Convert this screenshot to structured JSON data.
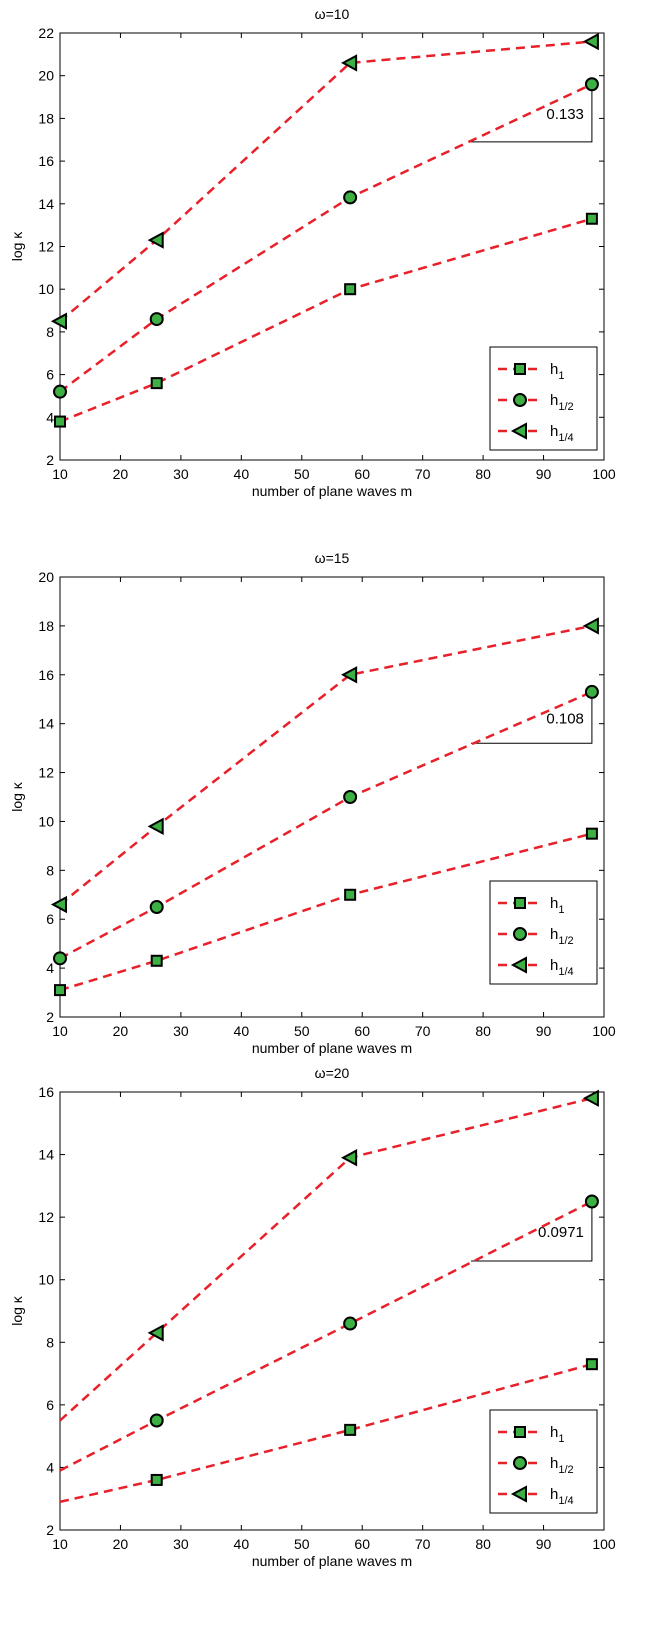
{
  "chart_data": [
    {
      "type": "line",
      "title": "ω=10",
      "xlabel": "number of plane waves m",
      "ylabel": "log κ",
      "xlim": [
        10,
        100
      ],
      "ylim": [
        2,
        22
      ],
      "xticks": [
        10,
        20,
        30,
        40,
        50,
        60,
        70,
        80,
        90,
        100
      ],
      "yticks": [
        2,
        4,
        6,
        8,
        10,
        12,
        14,
        16,
        18,
        20,
        22
      ],
      "grid": false,
      "legend_position": "bottom-right",
      "line_color": "#e8202a",
      "marker_fill": "#3cb043",
      "series": [
        {
          "name": "h",
          "sub": "1",
          "marker": "square",
          "x": [
            10,
            26,
            58,
            98
          ],
          "y": [
            3.8,
            5.6,
            10.0,
            13.3
          ]
        },
        {
          "name": "h",
          "sub": "1/2",
          "marker": "circle",
          "x": [
            10,
            26,
            58,
            98
          ],
          "y": [
            5.2,
            8.6,
            14.3,
            19.6
          ]
        },
        {
          "name": "h",
          "sub": "1/4",
          "marker": "triangle-left",
          "x": [
            10,
            26,
            58,
            98
          ],
          "y": [
            8.5,
            12.3,
            20.6,
            21.6
          ]
        }
      ],
      "annotation": {
        "text": "0.133",
        "x1": 78,
        "x2": 98,
        "y_lo": 16.9,
        "y_hi": 19.6
      }
    },
    {
      "type": "line",
      "title": "ω=15",
      "xlabel": "number of plane waves m",
      "ylabel": "log κ",
      "xlim": [
        10,
        100
      ],
      "ylim": [
        2,
        20
      ],
      "xticks": [
        10,
        20,
        30,
        40,
        50,
        60,
        70,
        80,
        90,
        100
      ],
      "yticks": [
        2,
        4,
        6,
        8,
        10,
        12,
        14,
        16,
        18,
        20
      ],
      "grid": false,
      "legend_position": "bottom-right",
      "line_color": "#e8202a",
      "marker_fill": "#3cb043",
      "series": [
        {
          "name": "h",
          "sub": "1",
          "marker": "square",
          "x": [
            10,
            26,
            58,
            98
          ],
          "y": [
            3.1,
            4.3,
            7.0,
            9.5
          ]
        },
        {
          "name": "h",
          "sub": "1/2",
          "marker": "circle",
          "x": [
            10,
            26,
            58,
            98
          ],
          "y": [
            4.4,
            6.5,
            11.0,
            15.3
          ]
        },
        {
          "name": "h",
          "sub": "1/4",
          "marker": "triangle-left",
          "x": [
            10,
            26,
            58,
            98
          ],
          "y": [
            6.6,
            9.8,
            16.0,
            18.0
          ]
        }
      ],
      "annotation": {
        "text": "0.108",
        "x1": 78,
        "x2": 98,
        "y_lo": 13.2,
        "y_hi": 15.3
      }
    },
    {
      "type": "line",
      "title": "ω=20",
      "xlabel": "number of plane waves m",
      "ylabel": "log κ",
      "xlim": [
        10,
        100
      ],
      "ylim": [
        2,
        16
      ],
      "xticks": [
        10,
        20,
        30,
        40,
        50,
        60,
        70,
        80,
        90,
        100
      ],
      "yticks": [
        2,
        4,
        6,
        8,
        10,
        12,
        14,
        16
      ],
      "grid": false,
      "legend_position": "bottom-right",
      "line_color": "#e8202a",
      "marker_fill": "#3cb043",
      "series": [
        {
          "name": "h",
          "sub": "1",
          "marker": "square",
          "x": [
            10,
            26,
            58,
            98
          ],
          "y": [
            2.9,
            3.6,
            5.2,
            7.3
          ],
          "markers_from": 1
        },
        {
          "name": "h",
          "sub": "1/2",
          "marker": "circle",
          "x": [
            10,
            26,
            58,
            98
          ],
          "y": [
            3.9,
            5.5,
            8.6,
            12.5
          ],
          "markers_from": 1
        },
        {
          "name": "h",
          "sub": "1/4",
          "marker": "triangle-left",
          "x": [
            10,
            26,
            58,
            98
          ],
          "y": [
            5.5,
            8.3,
            13.9,
            15.8
          ],
          "markers_from": 1
        }
      ],
      "annotation": {
        "text": "0.0971",
        "x1": 78,
        "x2": 98,
        "y_lo": 10.6,
        "y_hi": 12.5
      }
    }
  ]
}
